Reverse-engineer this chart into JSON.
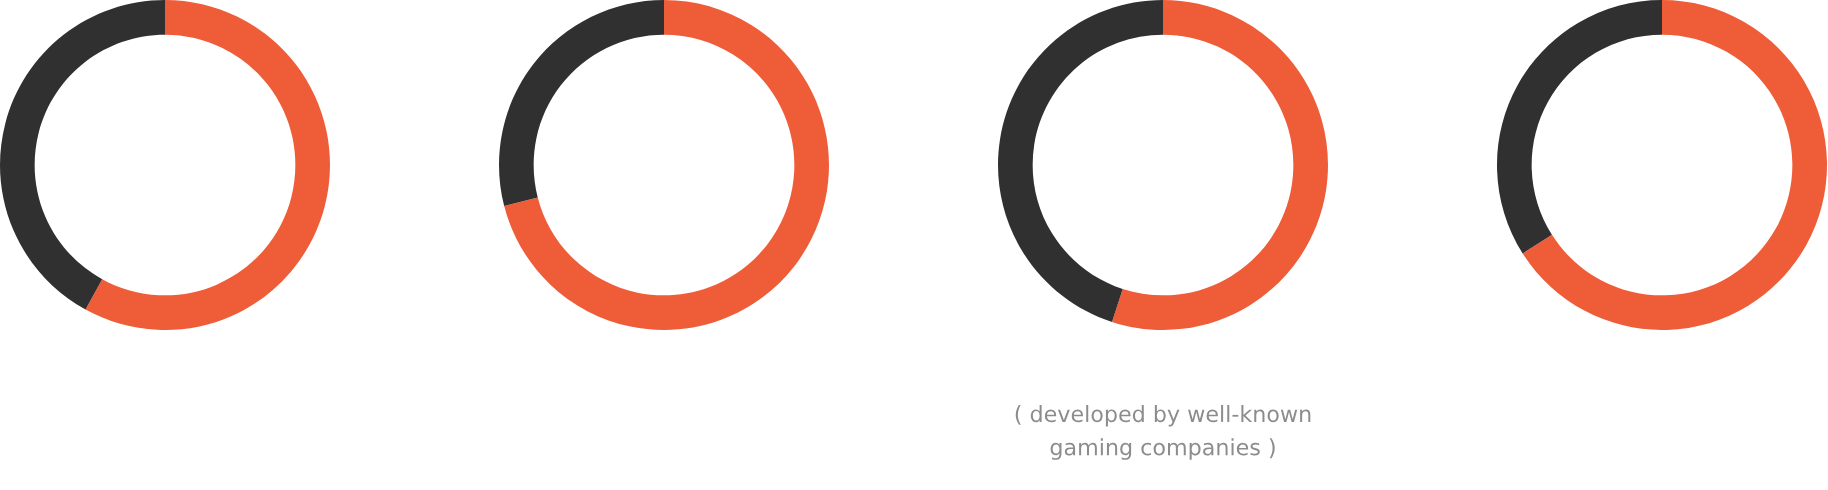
{
  "chart_data": [
    {
      "type": "donut",
      "categories": [
        null,
        null
      ],
      "values": [
        58,
        42
      ],
      "colors": [
        "#ef5c38",
        "#303030"
      ]
    },
    {
      "type": "donut",
      "categories": [
        null,
        null
      ],
      "values": [
        71,
        29
      ],
      "colors": [
        "#ef5c38",
        "#303030"
      ]
    },
    {
      "type": "donut",
      "categories": [
        null,
        null
      ],
      "values": [
        55,
        45
      ],
      "colors": [
        "#ef5c38",
        "#303030"
      ],
      "annotations": [
        "( developed by well-known\ngaming companies )"
      ]
    },
    {
      "type": "donut",
      "categories": [
        null,
        null
      ],
      "values": [
        66,
        34
      ],
      "colors": [
        "#ef5c38",
        "#303030"
      ]
    }
  ]
}
